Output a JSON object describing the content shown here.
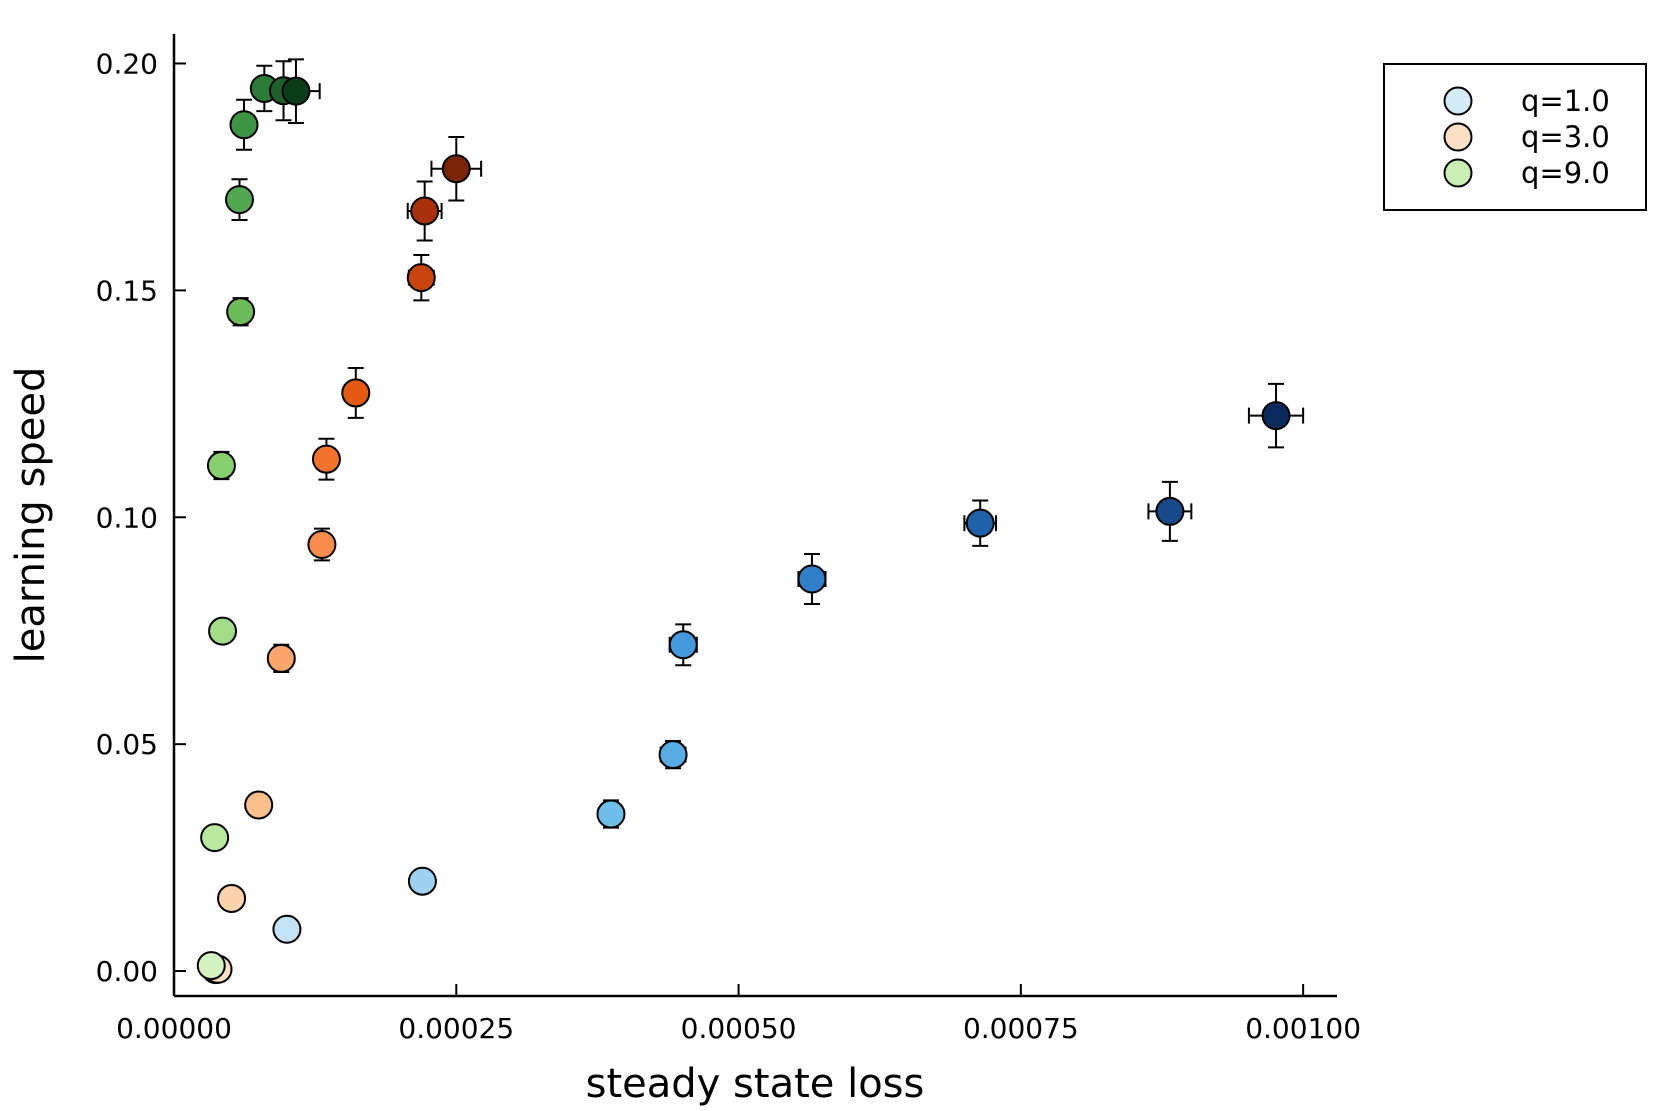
{
  "chart_data": {
    "type": "scatter",
    "title": "",
    "xlabel": "steady state loss",
    "ylabel": "learning speed",
    "xlim": [
      0,
      0.00103
    ],
    "ylim": [
      -0.0055,
      0.2065
    ],
    "xticks": [
      0.0,
      0.00025,
      0.0005,
      0.00075,
      0.001
    ],
    "xtick_labels": [
      "0.00000",
      "0.00025",
      "0.00050",
      "0.00075",
      "0.00100"
    ],
    "yticks": [
      0.0,
      0.05,
      0.1,
      0.15,
      0.2
    ],
    "ytick_labels": [
      "0.00",
      "0.05",
      "0.10",
      "0.15",
      "0.20"
    ],
    "grid": false,
    "legend_position": "top-right",
    "error_bars": true,
    "series": [
      {
        "name": "q=1.0",
        "legend_color": "#d4ecf7",
        "points": [
          {
            "x": 3.7e-05,
            "y": 0.0003,
            "xerr": 4e-06,
            "yerr": 0.001,
            "color": "#d4ecf7"
          },
          {
            "x": 0.0001,
            "y": 0.0092,
            "xerr": 6e-06,
            "yerr": 0.002,
            "color": "#c3e2f5"
          },
          {
            "x": 0.00022,
            "y": 0.0198,
            "xerr": 8e-06,
            "yerr": 0.0025,
            "color": "#9dd1ef"
          },
          {
            "x": 0.000387,
            "y": 0.0346,
            "xerr": 9e-06,
            "yerr": 0.003,
            "color": "#6ec0ea"
          },
          {
            "x": 0.000442,
            "y": 0.0477,
            "xerr": 1.1e-05,
            "yerr": 0.003,
            "color": "#58aee4"
          },
          {
            "x": 0.000451,
            "y": 0.0719,
            "xerr": 1.2e-05,
            "yerr": 0.0045,
            "color": "#4399db"
          },
          {
            "x": 0.000565,
            "y": 0.0864,
            "xerr": 1.2e-05,
            "yerr": 0.0055,
            "color": "#2f80c8"
          },
          {
            "x": 0.000714,
            "y": 0.0987,
            "xerr": 1.4e-05,
            "yerr": 0.005,
            "color": "#1f61a8"
          },
          {
            "x": 0.000882,
            "y": 0.1013,
            "xerr": 1.9e-05,
            "yerr": 0.0065,
            "color": "#164a8a"
          },
          {
            "x": 0.000976,
            "y": 0.1224,
            "xerr": 2.4e-05,
            "yerr": 0.007,
            "color": "#0b2a5e"
          }
        ]
      },
      {
        "name": "q=3.0",
        "legend_color": "#fde0c4",
        "points": [
          {
            "x": 3.9e-05,
            "y": 0.0004,
            "xerr": 4e-06,
            "yerr": 0.001,
            "color": "#fde0c4"
          },
          {
            "x": 5.1e-05,
            "y": 0.016,
            "xerr": 4e-06,
            "yerr": 0.002,
            "color": "#fcd2ad"
          },
          {
            "x": 7.5e-05,
            "y": 0.0366,
            "xerr": 5e-06,
            "yerr": 0.0025,
            "color": "#fbbf8c"
          },
          {
            "x": 9.5e-05,
            "y": 0.0689,
            "xerr": 7e-06,
            "yerr": 0.003,
            "color": "#fca66e"
          },
          {
            "x": 0.000131,
            "y": 0.094,
            "xerr": 8e-06,
            "yerr": 0.0035,
            "color": "#fc8c4c"
          },
          {
            "x": 0.000135,
            "y": 0.1128,
            "xerr": 1e-05,
            "yerr": 0.0045,
            "color": "#f5722c"
          },
          {
            "x": 0.000161,
            "y": 0.1274,
            "xerr": 1e-05,
            "yerr": 0.0055,
            "color": "#e45a13"
          },
          {
            "x": 0.000219,
            "y": 0.1528,
            "xerr": 1.1e-05,
            "yerr": 0.005,
            "color": "#c9440c"
          },
          {
            "x": 0.000222,
            "y": 0.1675,
            "xerr": 1.5e-05,
            "yerr": 0.0065,
            "color": "#a83109"
          },
          {
            "x": 0.00025,
            "y": 0.1768,
            "xerr": 2.2e-05,
            "yerr": 0.007,
            "color": "#7a2306"
          }
        ]
      },
      {
        "name": "q=9.0",
        "legend_color": "#c9efb4",
        "points": [
          {
            "x": 3.3e-05,
            "y": 0.0012,
            "xerr": 3e-06,
            "yerr": 0.001,
            "color": "#d3f2c0"
          },
          {
            "x": 3.6e-05,
            "y": 0.0294,
            "xerr": 4e-06,
            "yerr": 0.002,
            "color": "#b9e89f"
          },
          {
            "x": 4.3e-05,
            "y": 0.0749,
            "xerr": 4e-06,
            "yerr": 0.0025,
            "color": "#a2dc86"
          },
          {
            "x": 4.2e-05,
            "y": 0.1114,
            "xerr": 5e-06,
            "yerr": 0.003,
            "color": "#88cf70"
          },
          {
            "x": 5.9e-05,
            "y": 0.1453,
            "xerr": 6e-06,
            "yerr": 0.003,
            "color": "#6cbc5c"
          },
          {
            "x": 5.8e-05,
            "y": 0.17,
            "xerr": 6e-06,
            "yerr": 0.0045,
            "color": "#52a850"
          },
          {
            "x": 6.2e-05,
            "y": 0.1865,
            "xerr": 6e-06,
            "yerr": 0.0055,
            "color": "#3c9444"
          },
          {
            "x": 8e-05,
            "y": 0.1945,
            "xerr": 8e-06,
            "yerr": 0.005,
            "color": "#2a7c37"
          },
          {
            "x": 9.7e-05,
            "y": 0.194,
            "xerr": 1.2e-05,
            "yerr": 0.0065,
            "color": "#1b6129"
          },
          {
            "x": 0.000108,
            "y": 0.1939,
            "xerr": 2.1e-05,
            "yerr": 0.007,
            "color": "#0a3d18"
          }
        ]
      }
    ]
  }
}
